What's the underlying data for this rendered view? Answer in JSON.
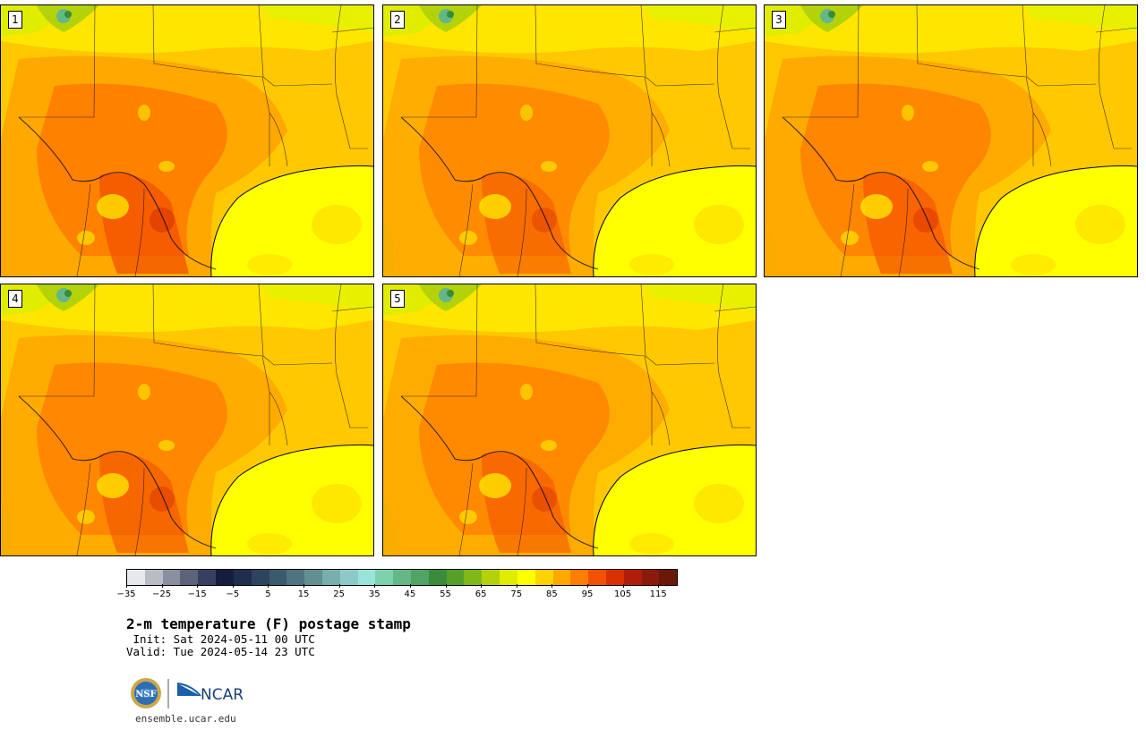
{
  "panels": [
    {
      "label": "1",
      "intensity": 1.0
    },
    {
      "label": "2",
      "intensity": 0.7
    },
    {
      "label": "3",
      "intensity": 0.85
    },
    {
      "label": "4",
      "intensity": 0.8
    },
    {
      "label": "5",
      "intensity": 0.75
    }
  ],
  "colorbar": {
    "colors": [
      "#e6e8ec",
      "#b8bcc6",
      "#8a90a0",
      "#5c647a",
      "#364060",
      "#141e3c",
      "#1e2e4c",
      "#2c445e",
      "#3a5a6e",
      "#4e7480",
      "#629090",
      "#78aeac",
      "#8ccaca",
      "#98e4d8",
      "#7cd2ac",
      "#64b888",
      "#50a464",
      "#3a8c3a",
      "#56a02a",
      "#80b818",
      "#b4d20a",
      "#e0ec00",
      "#ffff00",
      "#ffd200",
      "#ffa800",
      "#ff7e00",
      "#f25200",
      "#d83200",
      "#b01e0a",
      "#8a1a0c",
      "#6a1808"
    ],
    "ticks": [
      "−35",
      "−25",
      "−15",
      "−5",
      "5",
      "15",
      "25",
      "35",
      "45",
      "55",
      "65",
      "75",
      "85",
      "95",
      "105",
      "115"
    ]
  },
  "title": "2-m temperature (F) postage stamp",
  "init": " Init: Sat 2024-05-11 00 UTC",
  "valid": "Valid: Tue 2024-05-14 23 UTC",
  "logo": {
    "nsf": "NSF",
    "ncar": "NCAR"
  },
  "site": "ensemble.ucar.edu"
}
